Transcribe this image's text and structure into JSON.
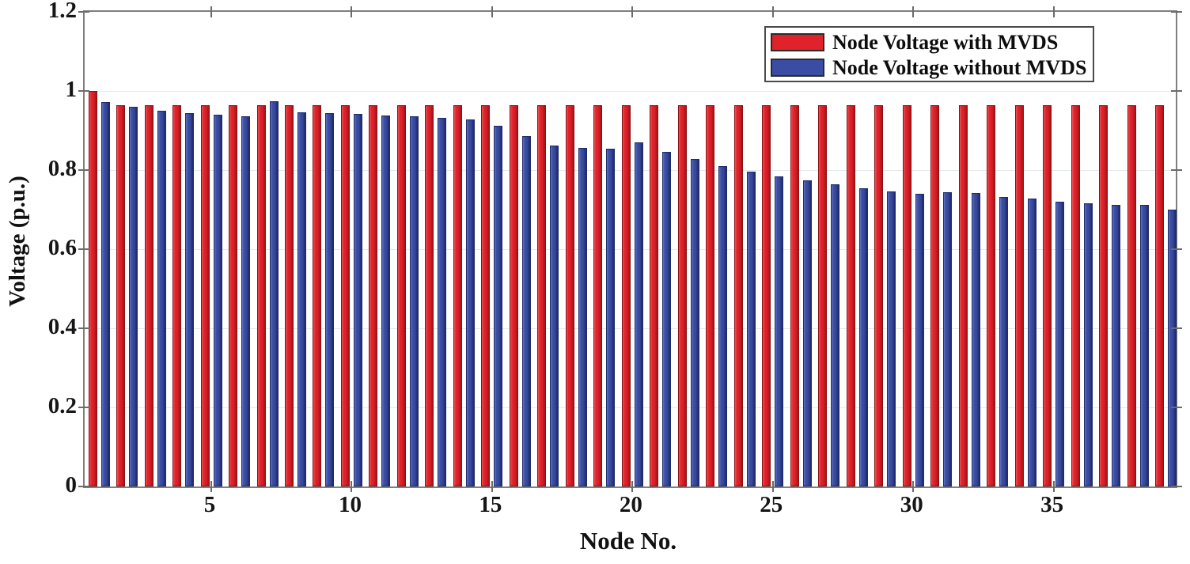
{
  "figure": {
    "background": "#ffffff",
    "axis_color": "#7f7f7f",
    "grid_color": "#e2e9ef"
  },
  "chart_data": {
    "type": "bar",
    "title": "",
    "xlabel": "Node No.",
    "ylabel": "Voltage (p.u.)",
    "x": [
      1,
      2,
      3,
      4,
      5,
      6,
      7,
      8,
      9,
      10,
      11,
      12,
      13,
      14,
      15,
      16,
      17,
      18,
      19,
      20,
      21,
      22,
      23,
      24,
      25,
      26,
      27,
      28,
      29,
      30,
      31,
      32,
      33,
      34,
      35,
      36,
      37,
      38,
      39
    ],
    "series": [
      {
        "name": "Node Voltage with MVDS",
        "color": "#e0222a",
        "edge_color": "#8c1014",
        "values": [
          1.0,
          0.965,
          0.965,
          0.965,
          0.965,
          0.965,
          0.965,
          0.965,
          0.965,
          0.965,
          0.965,
          0.965,
          0.965,
          0.965,
          0.965,
          0.965,
          0.965,
          0.965,
          0.965,
          0.965,
          0.965,
          0.965,
          0.965,
          0.965,
          0.965,
          0.965,
          0.965,
          0.965,
          0.965,
          0.965,
          0.965,
          0.965,
          0.965,
          0.965,
          0.965,
          0.965,
          0.965,
          0.965,
          0.965
        ]
      },
      {
        "name": "Node Voltage without MVDS",
        "color": "#3b4da3",
        "edge_color": "#1f2d6b",
        "values": [
          0.972,
          0.96,
          0.951,
          0.945,
          0.941,
          0.937,
          0.975,
          0.947,
          0.944,
          0.942,
          0.939,
          0.936,
          0.933,
          0.929,
          0.912,
          0.886,
          0.862,
          0.857,
          0.854,
          0.87,
          0.846,
          0.828,
          0.81,
          0.796,
          0.784,
          0.775,
          0.765,
          0.754,
          0.746,
          0.741,
          0.744,
          0.742,
          0.733,
          0.728,
          0.721,
          0.716,
          0.713,
          0.712,
          0.701
        ]
      }
    ],
    "xticks": [
      5,
      10,
      15,
      20,
      25,
      30,
      35
    ],
    "xtick_labels": [
      "5",
      "10",
      "15",
      "20",
      "25",
      "30",
      "35"
    ],
    "yticks": [
      0,
      0.2,
      0.4,
      0.6,
      0.8,
      1,
      1.2
    ],
    "ytick_labels": [
      "0",
      "0.2",
      "0.4",
      "0.6",
      "0.8",
      "1",
      "1.2"
    ],
    "ylim": [
      0,
      1.2
    ],
    "xlim": [
      0.49,
      39.35
    ],
    "grid": "horizontal",
    "legend_position": "top-right"
  },
  "legend": {
    "items": [
      {
        "label": "Node Voltage with MVDS",
        "color": "#e0222a"
      },
      {
        "label": "Node Voltage without MVDS",
        "color": "#3b4da3"
      }
    ]
  }
}
